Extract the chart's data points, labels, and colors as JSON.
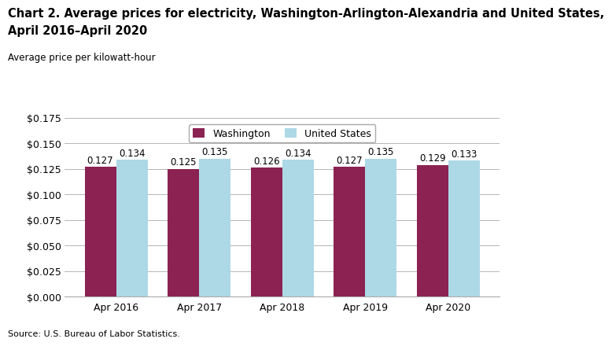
{
  "title_line1": "Chart 2. Average prices for electricity, Washington-Arlington-Alexandria and United States,",
  "title_line2": "April 2016–April 2020",
  "ylabel_text": "Average price per kilowatt-hour",
  "source": "Source: U.S. Bureau of Labor Statistics.",
  "categories": [
    "Apr 2016",
    "Apr 2017",
    "Apr 2018",
    "Apr 2019",
    "Apr 2020"
  ],
  "washington": [
    0.127,
    0.125,
    0.126,
    0.127,
    0.129
  ],
  "us": [
    0.134,
    0.135,
    0.134,
    0.135,
    0.133
  ],
  "washington_color": "#8B2252",
  "us_color": "#ADD8E6",
  "bar_width": 0.38,
  "ylim": [
    0,
    0.175
  ],
  "yticks": [
    0.0,
    0.025,
    0.05,
    0.075,
    0.1,
    0.125,
    0.15,
    0.175
  ],
  "legend_labels": [
    "Washington",
    "United States"
  ],
  "title_fontsize": 10.5,
  "small_label_fontsize": 8.5,
  "tick_fontsize": 9,
  "annotation_fontsize": 8.5,
  "legend_fontsize": 9,
  "source_fontsize": 8
}
